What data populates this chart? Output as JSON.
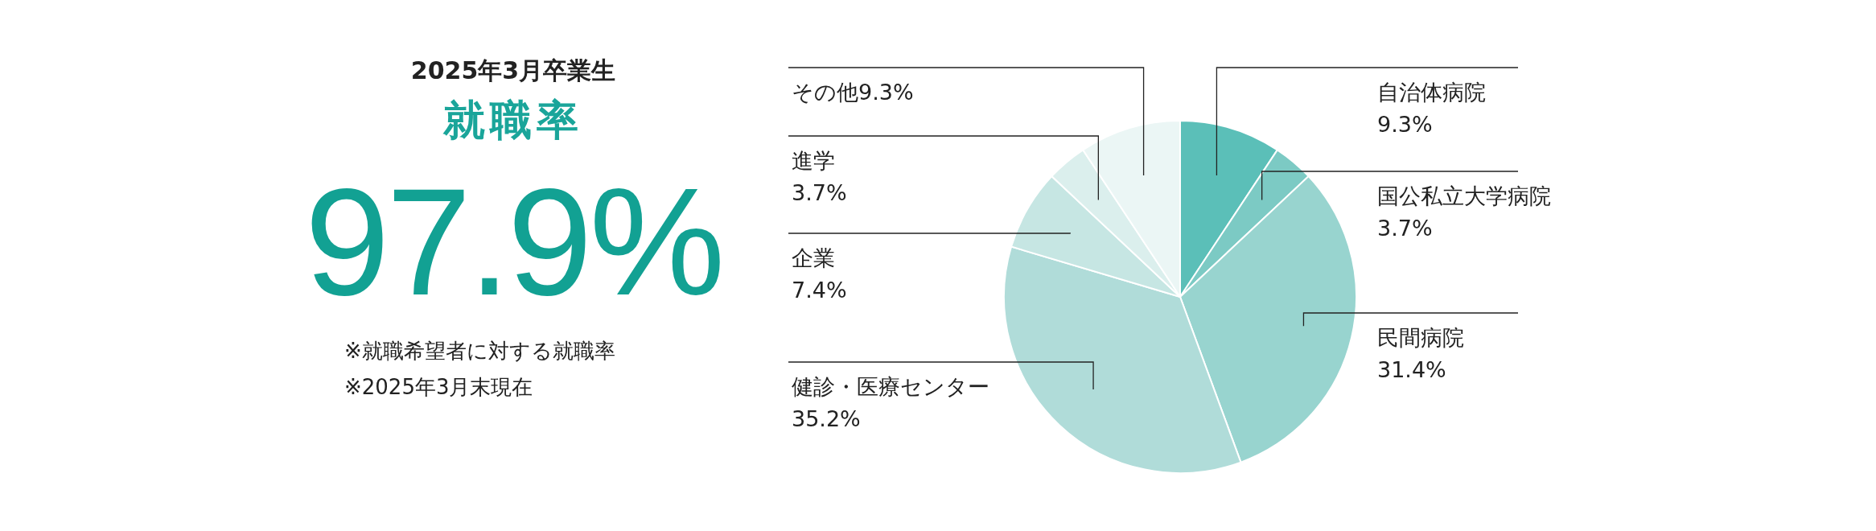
{
  "chart_data": [
    {
      "type": "other",
      "title": "2025年3月卒業生",
      "subtitle": "就職率",
      "annotations": [
        "97.9%",
        "※就職希望者に対する就職率",
        "※2025年3月末現在"
      ]
    },
    {
      "type": "pie",
      "categories": [
        "自治体病院",
        "国公私立大学病院",
        "民間病院",
        "健診・医療センター",
        "企業",
        "進学",
        "その他"
      ],
      "values": [
        9.3,
        3.7,
        31.4,
        35.2,
        7.4,
        3.7,
        9.3
      ],
      "value_labels": [
        "9.3%",
        "3.7%",
        "31.4%",
        "35.2%",
        "7.4%",
        "3.7%",
        "9.3%"
      ],
      "colors": [
        "#5bbfb8",
        "#7ccac4",
        "#98d4cf",
        "#b0dcd9",
        "#c6e6e3",
        "#dbefed",
        "#ebf6f5"
      ]
    }
  ]
}
